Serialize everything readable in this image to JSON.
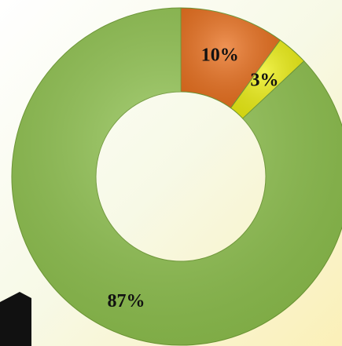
{
  "chart_data": {
    "type": "donut",
    "values": [
      10,
      3,
      87
    ],
    "value_labels": [
      "10%",
      "3%",
      "87%"
    ],
    "colors": [
      "#ea6f1c",
      "#eef012",
      "#8ec24c"
    ]
  }
}
